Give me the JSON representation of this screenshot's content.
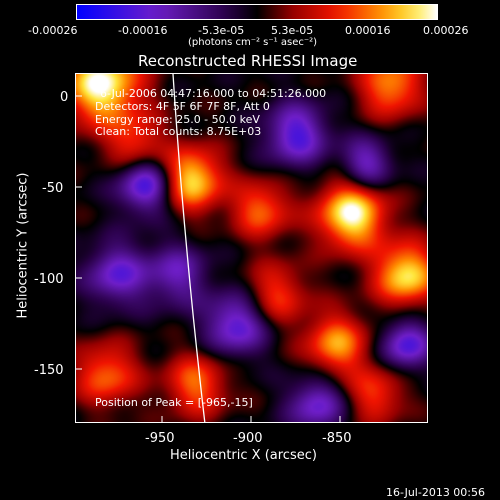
{
  "colorbar": {
    "ticks": [
      "-0.00026",
      "-0.00016",
      "-5.3e-05",
      "5.3e-05",
      "0.00016",
      "0.00026"
    ],
    "unit_label": "(photons cm⁻² s⁻¹ asec⁻²)"
  },
  "title": "Reconstructed RHESSI Image",
  "annotations": {
    "time_range": "6-Jul-2006 04:47:16.000 to 04:51:26.000",
    "detectors": "Detectors: 4F 5F 6F 7F 8F, Att 0",
    "energy": "Energy range: 25.0 - 50.0 keV",
    "clean": "Clean: Total counts: 8.75E+03",
    "peak": "Position of Peak = [-965,-15]"
  },
  "axes": {
    "xlabel": "Heliocentric X (arcsec)",
    "ylabel": "Heliocentric Y (arcsec)",
    "xticks": [
      "-950",
      "-900",
      "-850"
    ],
    "yticks": [
      "0",
      "-50",
      "-100",
      "-150"
    ]
  },
  "timestamp": "16-Jul-2013 00:56"
}
